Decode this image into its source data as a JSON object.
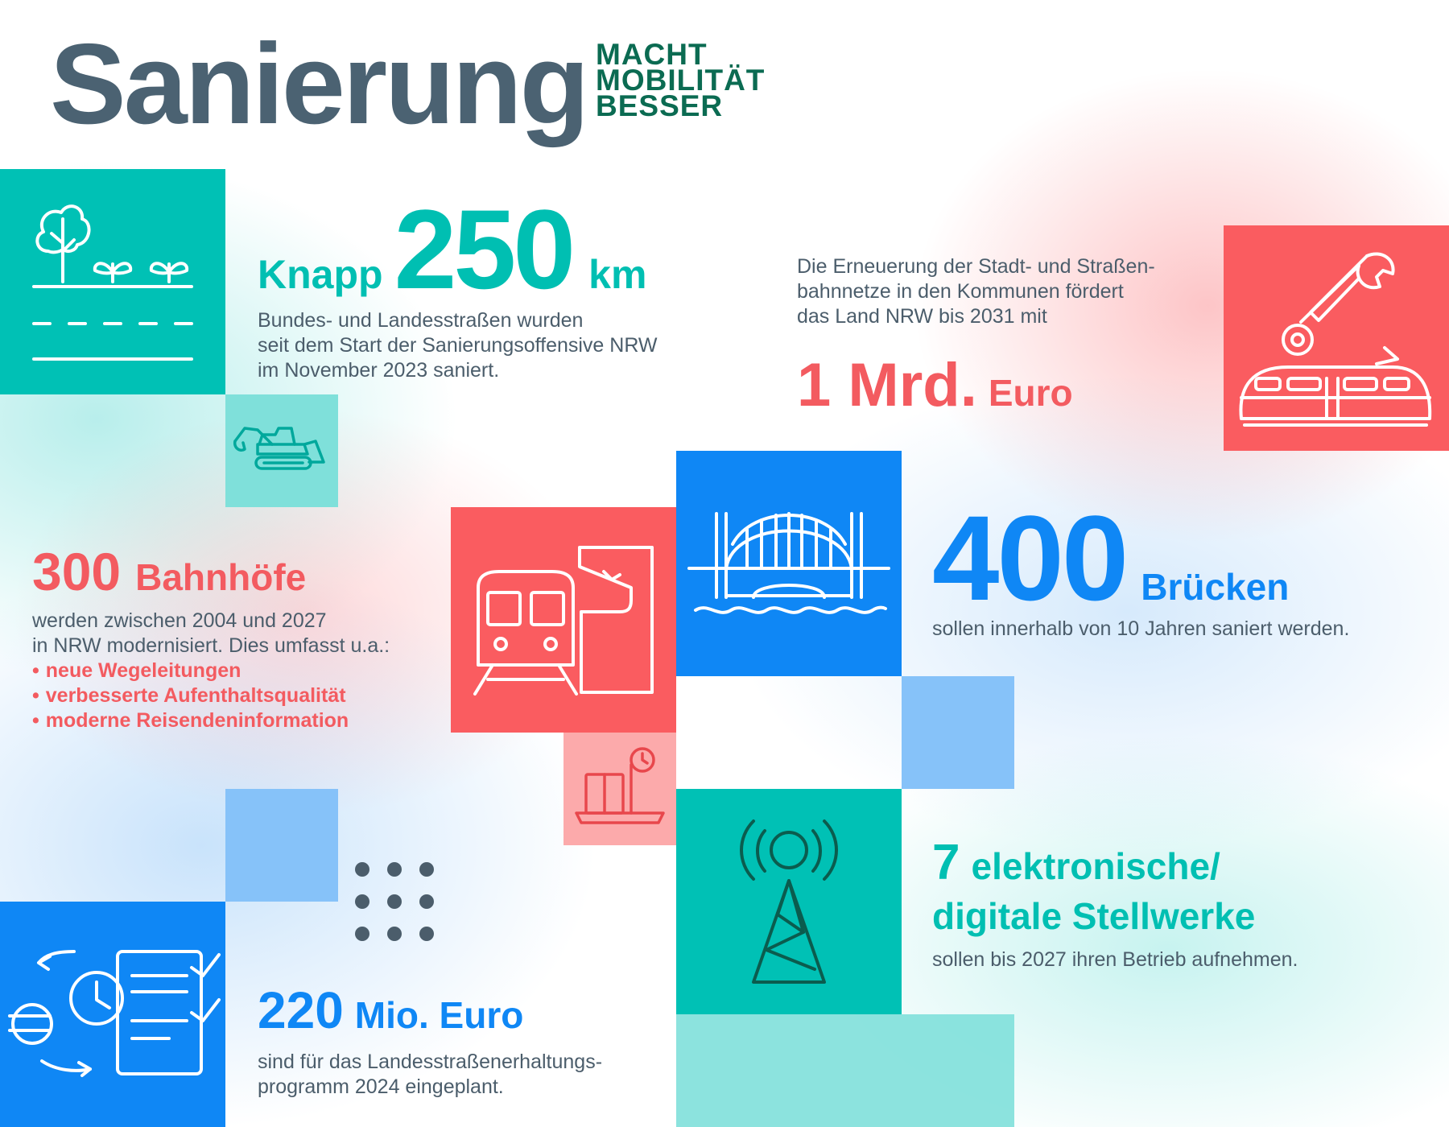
{
  "header": {
    "title": "Sanierung",
    "tagline": [
      "MACHT",
      "MOBILITÄT",
      "BESSER"
    ]
  },
  "roads": {
    "prefix": "Knapp",
    "number": "250",
    "unit": "km",
    "text": [
      "Bundes- und Landesstraßen wurden",
      "seit dem Start der Sanierungsoffensive NRW",
      "im November 2023 saniert."
    ]
  },
  "tram_funding": {
    "text": [
      "Die Erneuerung der Stadt- und Straßen-",
      "bahnnetze in den Kommunen fördert",
      "das Land NRW bis 2031 mit"
    ],
    "amount": "1 Mrd.",
    "unit": "Euro"
  },
  "stations": {
    "number": "300",
    "unit": "Bahnhöfe",
    "text": [
      "werden zwischen 2004 und 2027",
      "in NRW modernisiert. Dies umfasst u.a.:"
    ],
    "bullets": [
      "neue Wegeleitungen",
      "verbesserte Aufenthaltsqualität",
      "moderne Reisendeninformation"
    ]
  },
  "bridges": {
    "number": "400",
    "unit": "Brücken",
    "text": "sollen innerhalb von 10 Jahren saniert werden."
  },
  "interlockings": {
    "number": "7",
    "unit_line1": "elektronische/",
    "unit_line2": "digitale Stellwerke",
    "text": "sollen bis 2027 ihren Betrieb aufnehmen."
  },
  "road_program": {
    "number": "220",
    "unit": "Mio. Euro",
    "text": [
      "sind für das Landesstraßenerhaltungs-",
      "programm 2024 eingeplant."
    ]
  },
  "icons": {
    "tree_road": "tree-road-icon",
    "excavator": "excavator-icon",
    "wrench_tram": "wrench-tram-icon",
    "train_station": "train-station-icon",
    "luggage_scale": "luggage-scale-icon",
    "bridge": "bridge-icon",
    "dots": "dots-grid-icon",
    "signal_tower": "signal-tower-icon",
    "euro_clock_checklist": "euro-clock-checklist-icon"
  },
  "colors": {
    "teal": "#00c1b5",
    "light_teal": "#7fe0da",
    "coral": "#fa5c60",
    "light_coral": "#fcaaab",
    "blue": "#0f87f5",
    "light_blue": "#86c2f9",
    "dark_green": "#0b6b52",
    "slate": "#4b6272"
  }
}
